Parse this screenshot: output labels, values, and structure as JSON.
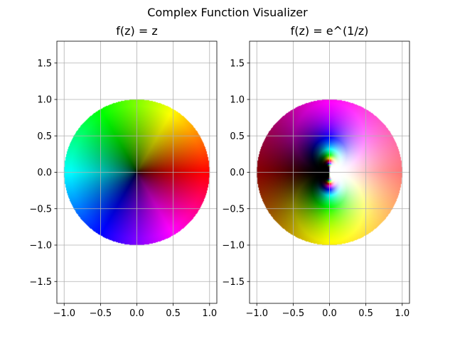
{
  "figure": {
    "suptitle": "Complex Function Visualizer"
  },
  "chart_data": [
    {
      "type": "heatmap",
      "title": "f(z) = z",
      "function": "z",
      "domain": "unit disk |z| <= 1",
      "coloring": "domain coloring: hue = arg f(z), brightness = |f(z)|",
      "xlabel": "",
      "ylabel": "",
      "xlim": [
        -1.1,
        1.1
      ],
      "ylim": [
        -1.8,
        1.8
      ],
      "xticks": [
        -1.0,
        -0.5,
        0.0,
        0.5,
        1.0
      ],
      "xtick_labels": [
        "−1.0",
        "−0.5",
        "0.0",
        "0.5",
        "1.0"
      ],
      "yticks": [
        -1.5,
        -1.0,
        -0.5,
        0.0,
        0.5,
        1.0,
        1.5
      ],
      "ytick_labels": [
        "−1.5",
        "−1.0",
        "−0.5",
        "0.0",
        "0.5",
        "1.0",
        "1.5"
      ],
      "grid": true
    },
    {
      "type": "heatmap",
      "title": "f(z) = e^(1/z)",
      "function": "exp(1/z)",
      "domain": "unit disk |z| <= 1",
      "coloring": "domain coloring: hue = arg f(z), brightness = |f(z)|",
      "xlabel": "",
      "ylabel": "",
      "xlim": [
        -1.1,
        1.1
      ],
      "ylim": [
        -1.8,
        1.8
      ],
      "xticks": [
        -1.0,
        -0.5,
        0.0,
        0.5,
        1.0
      ],
      "xtick_labels": [
        "−1.0",
        "−0.5",
        "0.0",
        "0.5",
        "1.0"
      ],
      "yticks": [
        -1.5,
        -1.0,
        -0.5,
        0.0,
        0.5,
        1.0,
        1.5
      ],
      "ytick_labels": [
        "−1.5",
        "−1.0",
        "−0.5",
        "0.0",
        "0.5",
        "1.0",
        "1.5"
      ],
      "grid": true
    }
  ],
  "colors": {
    "grid": "#b0b0b0",
    "spine": "#000000",
    "text": "#000000",
    "background": "#ffffff"
  }
}
